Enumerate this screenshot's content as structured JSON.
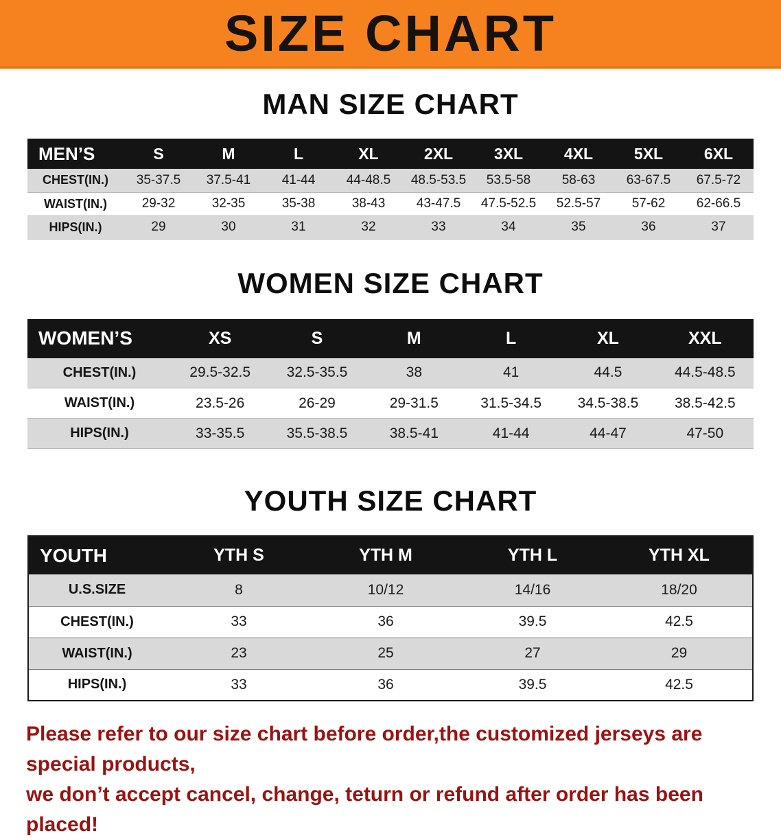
{
  "banner": {
    "title": "SIZE CHART"
  },
  "colors": {
    "banner_bg": "#F5821F",
    "header_bg": "#141414",
    "row_alt": "#D9D9D9",
    "footer_color": "#9C1111"
  },
  "man": {
    "heading": "MAN SIZE CHART",
    "table": {
      "header": [
        "MEN’S",
        "S",
        "M",
        "L",
        "XL",
        "2XL",
        "3XL",
        "4XL",
        "5XL",
        "6XL"
      ],
      "rows": [
        {
          "label": "CHEST(IN.)",
          "values": [
            "35-37.5",
            "37.5-41",
            "41-44",
            "44-48.5",
            "48.5-53.5",
            "53.5-58",
            "58-63",
            "63-67.5",
            "67.5-72"
          ]
        },
        {
          "label": "WAIST(IN.)",
          "values": [
            "29-32",
            "32-35",
            "35-38",
            "38-43",
            "43-47.5",
            "47.5-52.5",
            "52.5-57",
            "57-62",
            "62-66.5"
          ]
        },
        {
          "label": "HIPS(IN.)",
          "values": [
            "29",
            "30",
            "31",
            "32",
            "33",
            "34",
            "35",
            "36",
            "37"
          ]
        }
      ]
    }
  },
  "women": {
    "heading": "WOMEN SIZE CHART",
    "table": {
      "header": [
        "WOMEN’S",
        "XS",
        "S",
        "M",
        "L",
        "XL",
        "XXL"
      ],
      "rows": [
        {
          "label": "CHEST(IN.)",
          "values": [
            "29.5-32.5",
            "32.5-35.5",
            "38",
            "41",
            "44.5",
            "44.5-48.5"
          ]
        },
        {
          "label": "WAIST(IN.)",
          "values": [
            "23.5-26",
            "26-29",
            "29-31.5",
            "31.5-34.5",
            "34.5-38.5",
            "38.5-42.5"
          ]
        },
        {
          "label": "HIPS(IN.)",
          "values": [
            "33-35.5",
            "35.5-38.5",
            "38.5-41",
            "41-44",
            "44-47",
            "47-50"
          ]
        }
      ]
    }
  },
  "youth": {
    "heading": "YOUTH SIZE CHART",
    "table": {
      "header": [
        "YOUTH",
        "YTH S",
        "YTH M",
        "YTH L",
        "YTH XL"
      ],
      "rows": [
        {
          "label": "U.S.SIZE",
          "values": [
            "8",
            "10/12",
            "14/16",
            "18/20"
          ]
        },
        {
          "label": "CHEST(IN.)",
          "values": [
            "33",
            "36",
            "39.5",
            "42.5"
          ]
        },
        {
          "label": "WAIST(IN.)",
          "values": [
            "23",
            "25",
            "27",
            "29"
          ]
        },
        {
          "label": "HIPS(IN.)",
          "values": [
            "33",
            "36",
            "39.5",
            "42.5"
          ]
        }
      ]
    }
  },
  "footer": {
    "line1": "Please refer to our size chart before order,the customized jerseys are special products,",
    "line2": "we don’t accept cancel, change, teturn or refund after order has been placed!"
  }
}
